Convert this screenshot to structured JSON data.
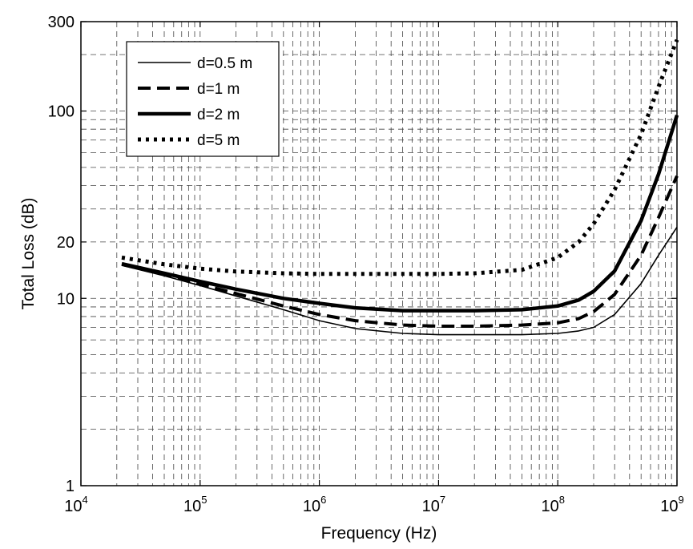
{
  "chart_data": {
    "type": "line",
    "title": "",
    "xlabel": "Frequency (Hz)",
    "ylabel": "Total Loss (dB)",
    "x_scale": "log",
    "y_scale": "log",
    "xlim": [
      10000,
      1000000000
    ],
    "ylim": [
      1,
      300
    ],
    "grid": true,
    "legend_position": "top-left",
    "x_ticks": [
      {
        "base": "10",
        "exp": "4",
        "value": 10000
      },
      {
        "base": "10",
        "exp": "5",
        "value": 100000
      },
      {
        "base": "10",
        "exp": "6",
        "value": 1000000
      },
      {
        "base": "10",
        "exp": "7",
        "value": 10000000
      },
      {
        "base": "10",
        "exp": "8",
        "value": 100000000
      },
      {
        "base": "10",
        "exp": "9",
        "value": 1000000000
      }
    ],
    "y_ticks": [
      {
        "label": "1",
        "value": 1
      },
      {
        "label": "10",
        "value": 10
      },
      {
        "label": "20",
        "value": 20
      },
      {
        "label": "100",
        "value": 100
      },
      {
        "label": "300",
        "value": 300
      }
    ],
    "series": [
      {
        "name": "d=0.5 m",
        "style": "thin-solid",
        "x": [
          22000,
          50000,
          100000,
          200000,
          500000,
          1000000,
          2000000,
          5000000,
          10000000,
          20000000,
          50000000,
          100000000,
          150000000,
          200000000,
          300000000,
          500000000,
          700000000,
          1000000000
        ],
        "y": [
          15.0,
          13.2,
          11.7,
          10.3,
          8.7,
          7.6,
          6.9,
          6.5,
          6.4,
          6.4,
          6.4,
          6.5,
          6.7,
          7.0,
          8.2,
          12.0,
          17.0,
          24.0
        ]
      },
      {
        "name": "d=1 m",
        "style": "dashed",
        "x": [
          22000,
          50000,
          100000,
          200000,
          500000,
          1000000,
          2000000,
          5000000,
          10000000,
          20000000,
          50000000,
          100000000,
          150000000,
          200000000,
          300000000,
          500000000,
          700000000,
          1000000000
        ],
        "y": [
          15.2,
          13.4,
          11.9,
          10.6,
          9.1,
          8.2,
          7.6,
          7.2,
          7.1,
          7.1,
          7.2,
          7.4,
          7.8,
          8.5,
          10.5,
          17.0,
          27.0,
          45.0
        ]
      },
      {
        "name": "d=2 m",
        "style": "thick-solid",
        "x": [
          22000,
          50000,
          100000,
          200000,
          500000,
          1000000,
          2000000,
          5000000,
          10000000,
          20000000,
          50000000,
          100000000,
          150000000,
          200000000,
          300000000,
          500000000,
          700000000,
          1000000000
        ],
        "y": [
          15.3,
          13.6,
          12.3,
          11.2,
          10.0,
          9.4,
          8.9,
          8.6,
          8.6,
          8.6,
          8.7,
          9.1,
          9.8,
          10.9,
          14.0,
          26.0,
          46.0,
          95.0
        ]
      },
      {
        "name": "d=5 m",
        "style": "dotted",
        "x": [
          22000,
          50000,
          100000,
          200000,
          500000,
          1000000,
          2000000,
          5000000,
          10000000,
          20000000,
          50000000,
          100000000,
          150000000,
          200000000,
          300000000,
          500000000,
          700000000,
          1000000000
        ],
        "y": [
          16.5,
          15.2,
          14.4,
          13.9,
          13.6,
          13.5,
          13.5,
          13.5,
          13.5,
          13.6,
          14.2,
          16.5,
          20.0,
          25.0,
          38.0,
          75.0,
          135.0,
          240.0
        ]
      }
    ]
  }
}
